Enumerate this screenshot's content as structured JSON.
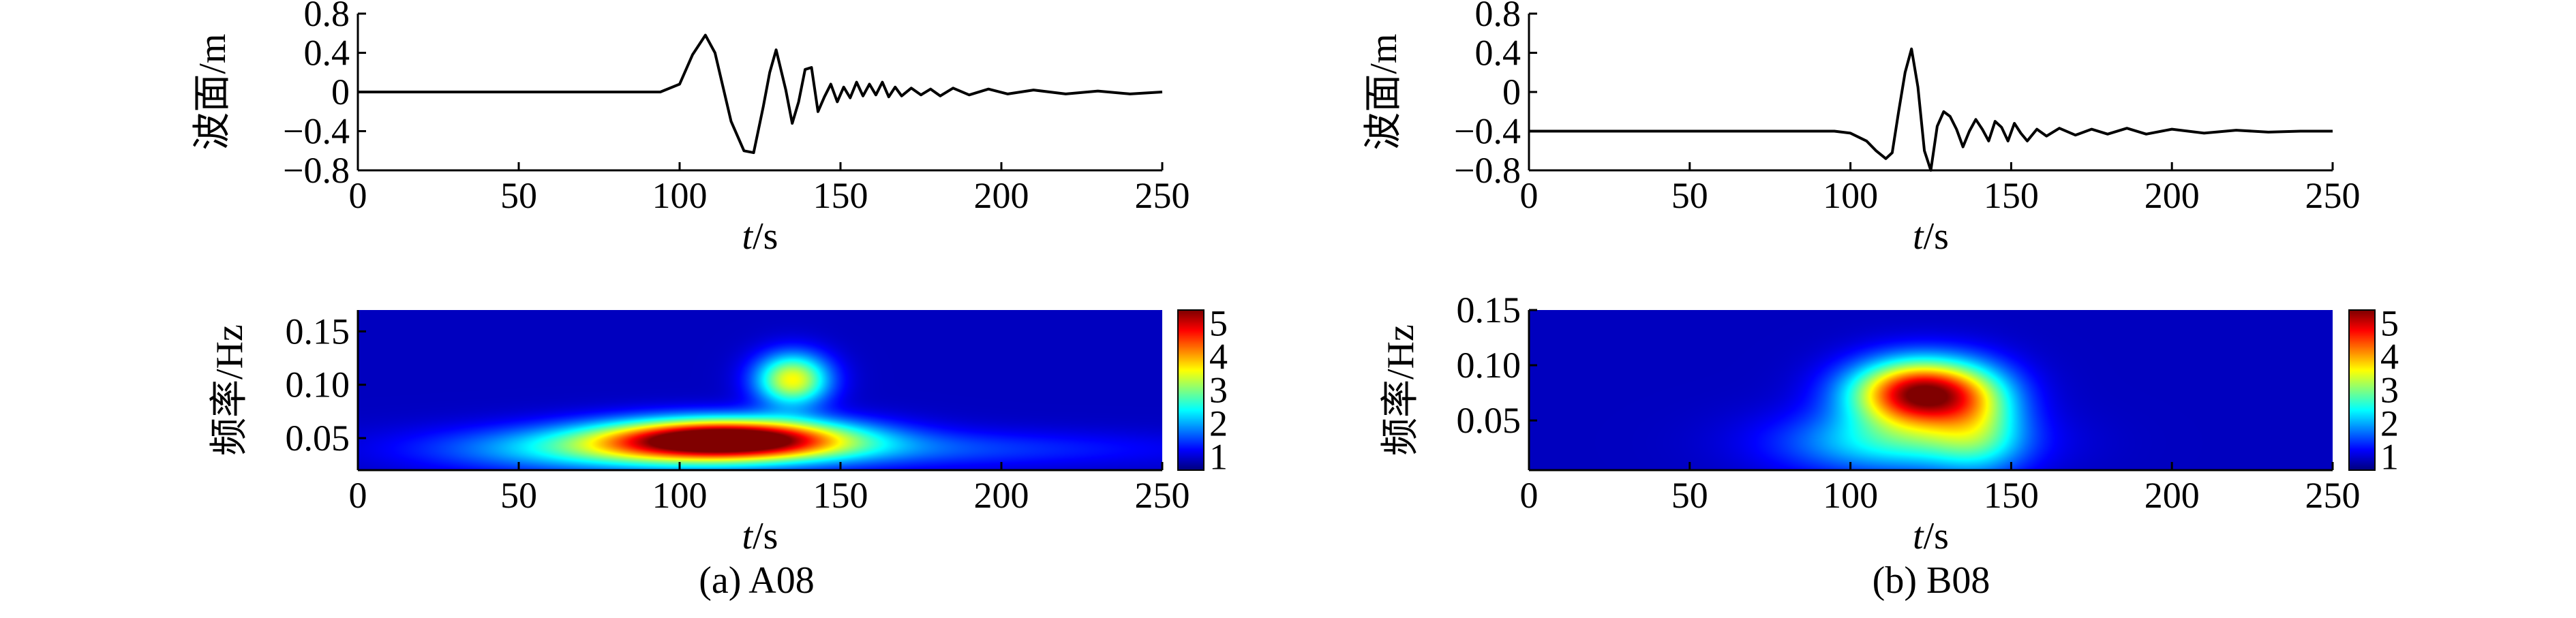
{
  "figure": {
    "captions": [
      "(a) A08",
      "(b) B08"
    ]
  },
  "chart_data": [
    {
      "type": "line",
      "panel": "a-top",
      "xlabel": "t/s",
      "ylabel": "波面/m",
      "xlim": [
        0,
        250
      ],
      "ylim": [
        -0.8,
        0.8
      ],
      "xticks": [
        0,
        50,
        100,
        150,
        200,
        250
      ],
      "yticks": [
        -0.8,
        -0.4,
        0,
        0.4,
        0.8
      ],
      "ytick_labels": [
        "−0.8",
        "−0.4",
        "0",
        "0.4",
        "0.8"
      ],
      "series": [
        {
          "x": [
            0,
            94,
            100,
            104,
            108,
            111,
            116,
            120,
            123,
            126,
            128,
            130,
            133,
            135,
            137,
            139,
            141,
            143,
            145,
            147,
            149,
            151,
            153,
            155,
            157,
            159,
            161,
            163,
            165,
            167,
            169,
            172,
            175,
            178,
            181,
            185,
            190,
            196,
            202,
            210,
            220,
            230,
            240,
            250
          ],
          "y": [
            0,
            0,
            0.08,
            0.38,
            0.58,
            0.4,
            -0.3,
            -0.6,
            -0.62,
            -0.15,
            0.2,
            0.43,
            0.02,
            -0.32,
            -0.1,
            0.23,
            0.25,
            -0.2,
            -0.05,
            0.08,
            -0.1,
            0.05,
            -0.06,
            0.1,
            -0.04,
            0.08,
            -0.03,
            0.1,
            -0.05,
            0.05,
            -0.04,
            0.04,
            -0.03,
            0.03,
            -0.04,
            0.04,
            -0.03,
            0.03,
            -0.02,
            0.02,
            -0.02,
            0.01,
            -0.02,
            0
          ]
        }
      ]
    },
    {
      "type": "line",
      "panel": "b-top",
      "xlabel": "t/s",
      "ylabel": "波面/m",
      "xlim": [
        0,
        250
      ],
      "ylim": [
        -0.8,
        0.8
      ],
      "xticks": [
        0,
        50,
        100,
        150,
        200,
        250
      ],
      "yticks": [
        -0.8,
        -0.4,
        0,
        0.4,
        0.8
      ],
      "ytick_labels": [
        "−0.8",
        "−0.4",
        "0",
        "0.4",
        "0.8"
      ],
      "series": [
        {
          "x": [
            0,
            95,
            100,
            105,
            108,
            111,
            113,
            115,
            117,
            119,
            121,
            123,
            125,
            127,
            129,
            131,
            133,
            135,
            137,
            139,
            141,
            143,
            145,
            147,
            149,
            151,
            153,
            155,
            158,
            161,
            165,
            170,
            175,
            180,
            186,
            192,
            200,
            210,
            220,
            230,
            240,
            250
          ],
          "y": [
            -0.4,
            -0.4,
            -0.42,
            -0.5,
            -0.6,
            -0.68,
            -0.62,
            -0.2,
            0.2,
            0.44,
            0.05,
            -0.6,
            -0.8,
            -0.35,
            -0.2,
            -0.25,
            -0.38,
            -0.56,
            -0.4,
            -0.28,
            -0.38,
            -0.5,
            -0.3,
            -0.36,
            -0.5,
            -0.32,
            -0.42,
            -0.5,
            -0.38,
            -0.45,
            -0.37,
            -0.44,
            -0.38,
            -0.43,
            -0.37,
            -0.43,
            -0.38,
            -0.42,
            -0.39,
            -0.41,
            -0.4,
            -0.4
          ]
        }
      ]
    },
    {
      "type": "heatmap",
      "panel": "a-bottom",
      "xlabel": "t/s",
      "ylabel": "频率/Hz",
      "xlim": [
        0,
        250
      ],
      "ylim": [
        0.02,
        0.17
      ],
      "xticks": [
        0,
        50,
        100,
        150,
        200,
        250
      ],
      "yticks": [
        0.05,
        0.1,
        0.15
      ],
      "ytick_labels": [
        "0.05",
        "0.10",
        "0.15"
      ],
      "colorbar": {
        "min": 0.6,
        "max": 5.4,
        "ticks": [
          1,
          2,
          3,
          4,
          5
        ]
      },
      "background_value": 0.9,
      "blobs": [
        {
          "t": 115,
          "f": 0.05,
          "st": 26,
          "sf": 0.013,
          "amp": 4.6
        },
        {
          "t": 135,
          "f": 0.105,
          "st": 8,
          "sf": 0.017,
          "amp": 2.7
        },
        {
          "t": 85,
          "f": 0.04,
          "st": 40,
          "sf": 0.015,
          "amp": 1.6
        },
        {
          "t": 170,
          "f": 0.04,
          "st": 60,
          "sf": 0.012,
          "amp": 0.6
        }
      ]
    },
    {
      "type": "heatmap",
      "panel": "b-bottom",
      "xlabel": "t/s",
      "ylabel": "频率/Hz",
      "xlim": [
        0,
        250
      ],
      "ylim": [
        0.005,
        0.15
      ],
      "xticks": [
        0,
        50,
        100,
        150,
        200,
        250
      ],
      "yticks": [
        0.05,
        0.1,
        0.15
      ],
      "ytick_labels": [
        "0.05",
        "0.10",
        "0.15"
      ],
      "colorbar": {
        "min": 0.6,
        "max": 5.4,
        "ticks": [
          1,
          2,
          3,
          4,
          5
        ]
      },
      "background_value": 0.9,
      "blobs": [
        {
          "t": 122,
          "f": 0.075,
          "st": 15,
          "sf": 0.021,
          "amp": 4.5
        },
        {
          "t": 140,
          "f": 0.045,
          "st": 10,
          "sf": 0.03,
          "amp": 1.2
        },
        {
          "t": 115,
          "f": 0.03,
          "st": 25,
          "sf": 0.02,
          "amp": 1.5
        }
      ]
    }
  ]
}
